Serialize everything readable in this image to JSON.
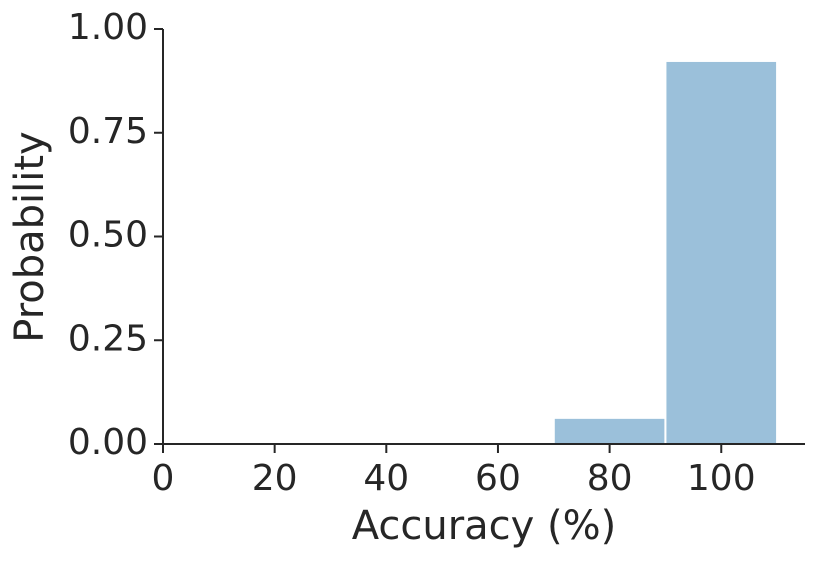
{
  "chart_data": {
    "type": "histogram",
    "xlabel": "Accuracy (%)",
    "ylabel": "Probability",
    "bins": [
      70,
      90,
      110
    ],
    "values": [
      0.063,
      0.923
    ],
    "color": "#9bc0da",
    "xlim": [
      0,
      115
    ],
    "xticks": [
      0,
      20,
      40,
      60,
      80,
      100
    ],
    "ylim": [
      0,
      1
    ],
    "yticks": [
      {
        "value": 0,
        "label": "0.00"
      },
      {
        "value": 0.25,
        "label": "0.25"
      },
      {
        "value": 0.5,
        "label": "0.50"
      },
      {
        "value": 0.75,
        "label": "0.75"
      },
      {
        "value": 1,
        "label": "1.00"
      }
    ]
  }
}
